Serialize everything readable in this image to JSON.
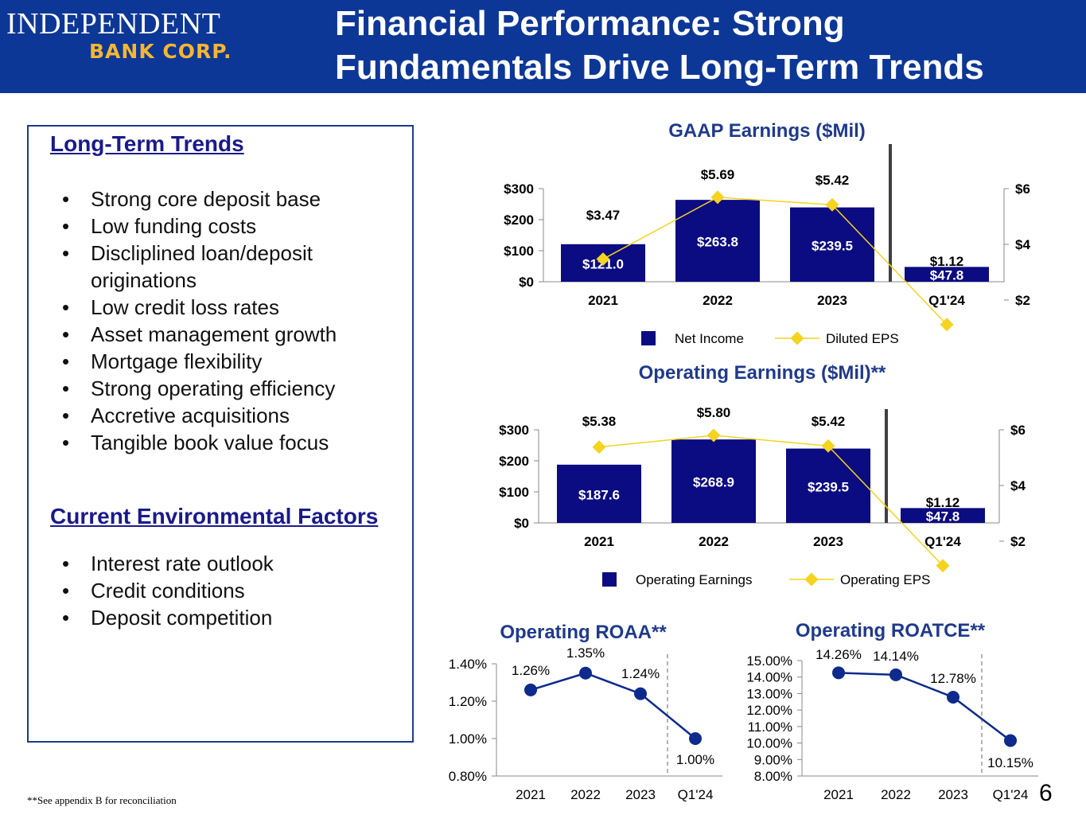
{
  "header": {
    "logo_line1": "INDEPENDENT",
    "logo_line2": "BANK CORP.",
    "title_line1": "Financial Performance:  Strong",
    "title_line2": "Fundamentals Drive Long-Term Trends"
  },
  "long_term": {
    "title": "Long-Term Trends",
    "items": [
      "Strong core deposit base",
      "Low funding costs",
      "Discliplined loan/deposit originations",
      "Low credit loss rates",
      "Asset management growth",
      "Mortgage flexibility",
      "Strong operating efficiency",
      "Accretive acquisitions",
      "Tangible book value focus"
    ]
  },
  "environment": {
    "title": "Current Environmental Factors",
    "items": [
      "Interest rate outlook",
      "Credit conditions",
      "Deposit competition"
    ]
  },
  "footnote": "**See appendix B for reconciliation",
  "page_number": "6",
  "colors": {
    "header": "#0d3796",
    "bar": "#0b0b82",
    "eps_line": "#f4d41e",
    "chart_title": "#1f3a8c",
    "roa_line": "#0d2a8c"
  },
  "chart_data": [
    {
      "type": "bar",
      "title": "GAAP Earnings ($Mil)",
      "categories": [
        "2021",
        "2022",
        "2023",
        "Q1'24"
      ],
      "series": [
        {
          "name": "Net Income",
          "axis": "left",
          "values": [
            121.0,
            263.8,
            239.5,
            47.8
          ],
          "labels": [
            "$121.0",
            "$263.8",
            "$239.5",
            "$47.8"
          ]
        },
        {
          "name": "Diluted EPS",
          "axis": "right",
          "type": "line",
          "values": [
            3.47,
            5.69,
            5.42,
            1.12
          ],
          "labels": [
            "$3.47",
            "$5.69",
            "$5.42",
            "$1.12"
          ]
        }
      ],
      "y_left": {
        "ticks": [
          0,
          100,
          200,
          300
        ],
        "tick_labels": [
          "$0",
          "$100",
          "$200",
          "$300"
        ]
      },
      "y_right": {
        "ticks": [
          2,
          4,
          6
        ],
        "tick_labels": [
          "$2",
          "$4",
          "$6"
        ]
      },
      "legend": "bottom"
    },
    {
      "type": "bar",
      "title": "Operating Earnings ($Mil)**",
      "categories": [
        "2021",
        "2022",
        "2023",
        "Q1'24"
      ],
      "series": [
        {
          "name": "Operating Earnings",
          "axis": "left",
          "values": [
            187.6,
            268.9,
            239.5,
            47.8
          ],
          "labels": [
            "$187.6",
            "$268.9",
            "$239.5",
            "$47.8"
          ]
        },
        {
          "name": "Operating EPS",
          "axis": "right",
          "type": "line",
          "values": [
            5.38,
            5.8,
            5.42,
            1.12
          ],
          "labels": [
            "$5.38",
            "$5.80",
            "$5.42",
            "$1.12"
          ]
        }
      ],
      "y_left": {
        "ticks": [
          0,
          100,
          200,
          300
        ],
        "tick_labels": [
          "$0",
          "$100",
          "$200",
          "$300"
        ]
      },
      "y_right": {
        "ticks": [
          2,
          4,
          6
        ],
        "tick_labels": [
          "$2",
          "$4",
          "$6"
        ]
      },
      "legend": "bottom"
    },
    {
      "type": "line",
      "title": "Operating ROAA**",
      "categories": [
        "2021",
        "2022",
        "2023",
        "Q1'24"
      ],
      "values": [
        1.26,
        1.35,
        1.24,
        1.0
      ],
      "labels": [
        "1.26%",
        "1.35%",
        "1.24%",
        "1.00%"
      ],
      "ylim": [
        0.8,
        1.4
      ],
      "y_ticks": [
        0.8,
        1.0,
        1.2,
        1.4
      ],
      "y_tick_labels": [
        "0.80%",
        "1.00%",
        "1.20%",
        "1.40%"
      ]
    },
    {
      "type": "line",
      "title": "Operating ROATCE**",
      "categories": [
        "2021",
        "2022",
        "2023",
        "Q1'24"
      ],
      "values": [
        14.26,
        14.14,
        12.78,
        10.15
      ],
      "labels": [
        "14.26%",
        "14.14%",
        "12.78%",
        "10.15%"
      ],
      "ylim": [
        8,
        15
      ],
      "y_ticks": [
        8,
        9,
        10,
        11,
        12,
        13,
        14,
        15
      ],
      "y_tick_labels": [
        "8.00%",
        "9.00%",
        "10.00%",
        "11.00%",
        "12.00%",
        "13.00%",
        "14.00%",
        "15.00%"
      ]
    }
  ]
}
